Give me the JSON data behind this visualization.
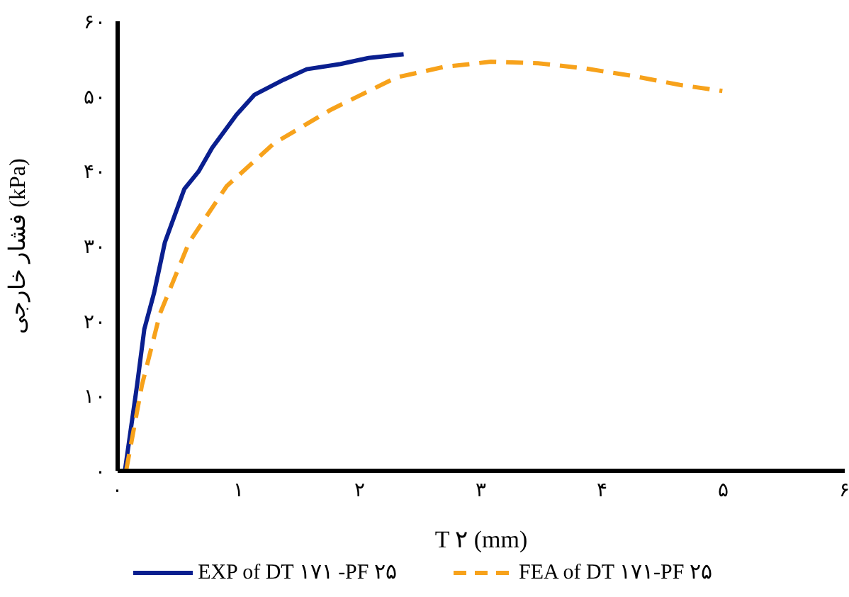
{
  "chart_data": {
    "type": "line",
    "xlabel": "T ۲ (mm)",
    "ylabel": "فشار خارجی (kPa)",
    "xlim": [
      0,
      6
    ],
    "xticks": [
      {
        "value": 0,
        "label": "۰"
      },
      {
        "value": 1,
        "label": "۱"
      },
      {
        "value": 2,
        "label": "۲"
      },
      {
        "value": 3,
        "label": "۳"
      },
      {
        "value": 4,
        "label": "۴"
      },
      {
        "value": 5,
        "label": "۵"
      },
      {
        "value": 6,
        "label": "۶"
      }
    ],
    "ylim": [
      0,
      60
    ],
    "yticks": [
      {
        "value": 0,
        "label": "۰"
      },
      {
        "value": 10,
        "label": "۱۰"
      },
      {
        "value": 20,
        "label": "۲۰"
      },
      {
        "value": 30,
        "label": "۳۰"
      },
      {
        "value": 40,
        "label": "۴۰"
      },
      {
        "value": 50,
        "label": "۵۰"
      },
      {
        "value": 60,
        "label": "۶۰"
      }
    ],
    "grid": false,
    "legend": "bottom",
    "marker": "none",
    "series": [
      {
        "name": "EXP of DT ۱۷۱ -PF ۲۵",
        "color": "#0a1f8f",
        "line_style": "solid",
        "x": [
          0.06,
          0.16,
          0.22,
          0.3,
          0.39,
          0.55,
          0.67,
          0.78,
          0.98,
          1.13,
          1.37,
          1.56,
          1.84,
          2.07,
          2.36
        ],
        "values": [
          0,
          11.4,
          18.9,
          23.7,
          30.5,
          37.6,
          40,
          43.1,
          47.5,
          50.2,
          52.2,
          53.6,
          54.3,
          55.1,
          55.6
        ]
      },
      {
        "name": "FEA of DT ۱۷۱-PF ۲۵",
        "color": "#f7a21b",
        "line_style": "dashed",
        "x": [
          0.07,
          0.2,
          0.35,
          0.59,
          0.9,
          1.29,
          1.76,
          2.3,
          2.69,
          3.08,
          3.47,
          3.86,
          4.25,
          4.64,
          4.99
        ],
        "values": [
          0,
          11.4,
          21,
          30.5,
          38,
          43.7,
          48.2,
          52.5,
          53.9,
          54.6,
          54.4,
          53.7,
          52.7,
          51.5,
          50.7
        ]
      }
    ]
  }
}
